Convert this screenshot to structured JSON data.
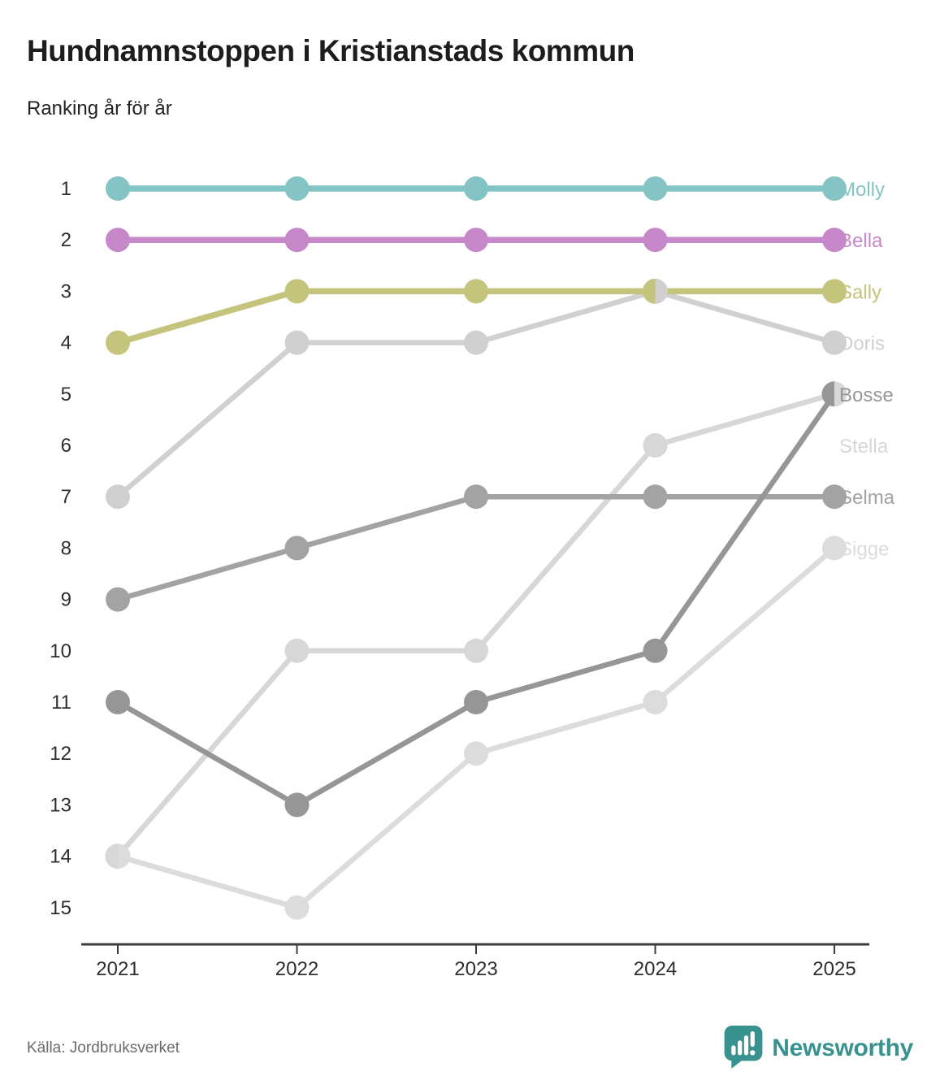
{
  "header": {
    "title": "Hundnamnstoppen i Kristianstads kommun",
    "subtitle": "Ranking år för år"
  },
  "footer": {
    "source": "Källa: Jordbruksverket",
    "brand": "Newsworthy",
    "brand_color": "#38928f"
  },
  "chart_data": {
    "type": "line",
    "variant": "bump-ranking",
    "title": "Hundnamnstoppen i Kristianstads kommun",
    "subtitle": "Ranking år för år",
    "x": [
      2021,
      2022,
      2023,
      2024,
      2025
    ],
    "y_axis": {
      "label": "ranking",
      "ticks": [
        1,
        2,
        3,
        4,
        5,
        6,
        7,
        8,
        9,
        10,
        11,
        12,
        13,
        14,
        15
      ],
      "ylim": [
        1,
        15
      ],
      "inverted": true
    },
    "grid": false,
    "legend": "end-of-line-labels",
    "axis_color": "#3c3c3c",
    "tick_text_color": "#2e2e2e",
    "series": [
      {
        "name": "Molly",
        "color": "#85c4c5",
        "ranks": [
          1,
          1,
          1,
          1,
          1
        ]
      },
      {
        "name": "Bella",
        "color": "#c688c8",
        "ranks": [
          2,
          2,
          2,
          2,
          2
        ]
      },
      {
        "name": "Sally",
        "color": "#c4c47c",
        "ranks": [
          4,
          3,
          3,
          3,
          3
        ]
      },
      {
        "name": "Doris",
        "color": "#d0d0d0",
        "ranks": [
          7,
          4,
          4,
          3,
          4
        ]
      },
      {
        "name": "Bosse",
        "color": "#969696",
        "ranks": [
          11,
          13,
          11,
          10,
          5
        ]
      },
      {
        "name": "Stella",
        "color": "#d7d7d7",
        "ranks": [
          14,
          10,
          10,
          6,
          5
        ],
        "label_rank": 6
      },
      {
        "name": "Selma",
        "color": "#a3a3a3",
        "ranks": [
          9,
          8,
          7,
          7,
          7
        ]
      },
      {
        "name": "Sigge",
        "color": "#dcdcdc",
        "ranks": [
          14,
          15,
          12,
          11,
          8
        ]
      }
    ],
    "ties": [
      {
        "year": 2021,
        "rank": 14,
        "left": "Stella",
        "right": "Sigge"
      },
      {
        "year": 2024,
        "rank": 3,
        "left": "Sally",
        "right": "Doris"
      },
      {
        "year": 2025,
        "rank": 5,
        "left": "Bosse",
        "right": "Stella"
      }
    ],
    "draw_order": [
      "Sigge",
      "Stella",
      "Doris",
      "Selma",
      "Bosse",
      "Sally",
      "Bella",
      "Molly"
    ]
  }
}
